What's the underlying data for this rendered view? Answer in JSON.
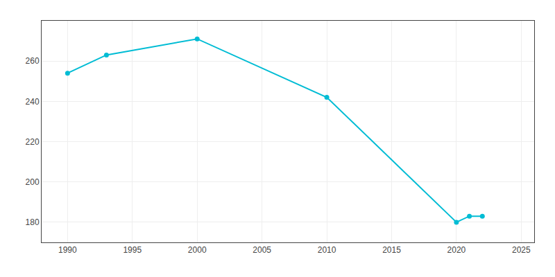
{
  "chart_data": {
    "type": "line",
    "x": [
      1990,
      1993,
      2000,
      2010,
      2020,
      2021,
      2022
    ],
    "values": [
      254,
      263,
      271,
      242,
      180,
      183,
      183
    ],
    "color": "#00BCD4",
    "marker": "circle",
    "xlim": [
      1988,
      2026
    ],
    "xticks": [
      1990,
      1995,
      2000,
      2005,
      2010,
      2015,
      2020,
      2025
    ],
    "ylim": [
      170,
      280
    ],
    "yticks": [
      180,
      200,
      220,
      240,
      260
    ],
    "grid": true
  }
}
